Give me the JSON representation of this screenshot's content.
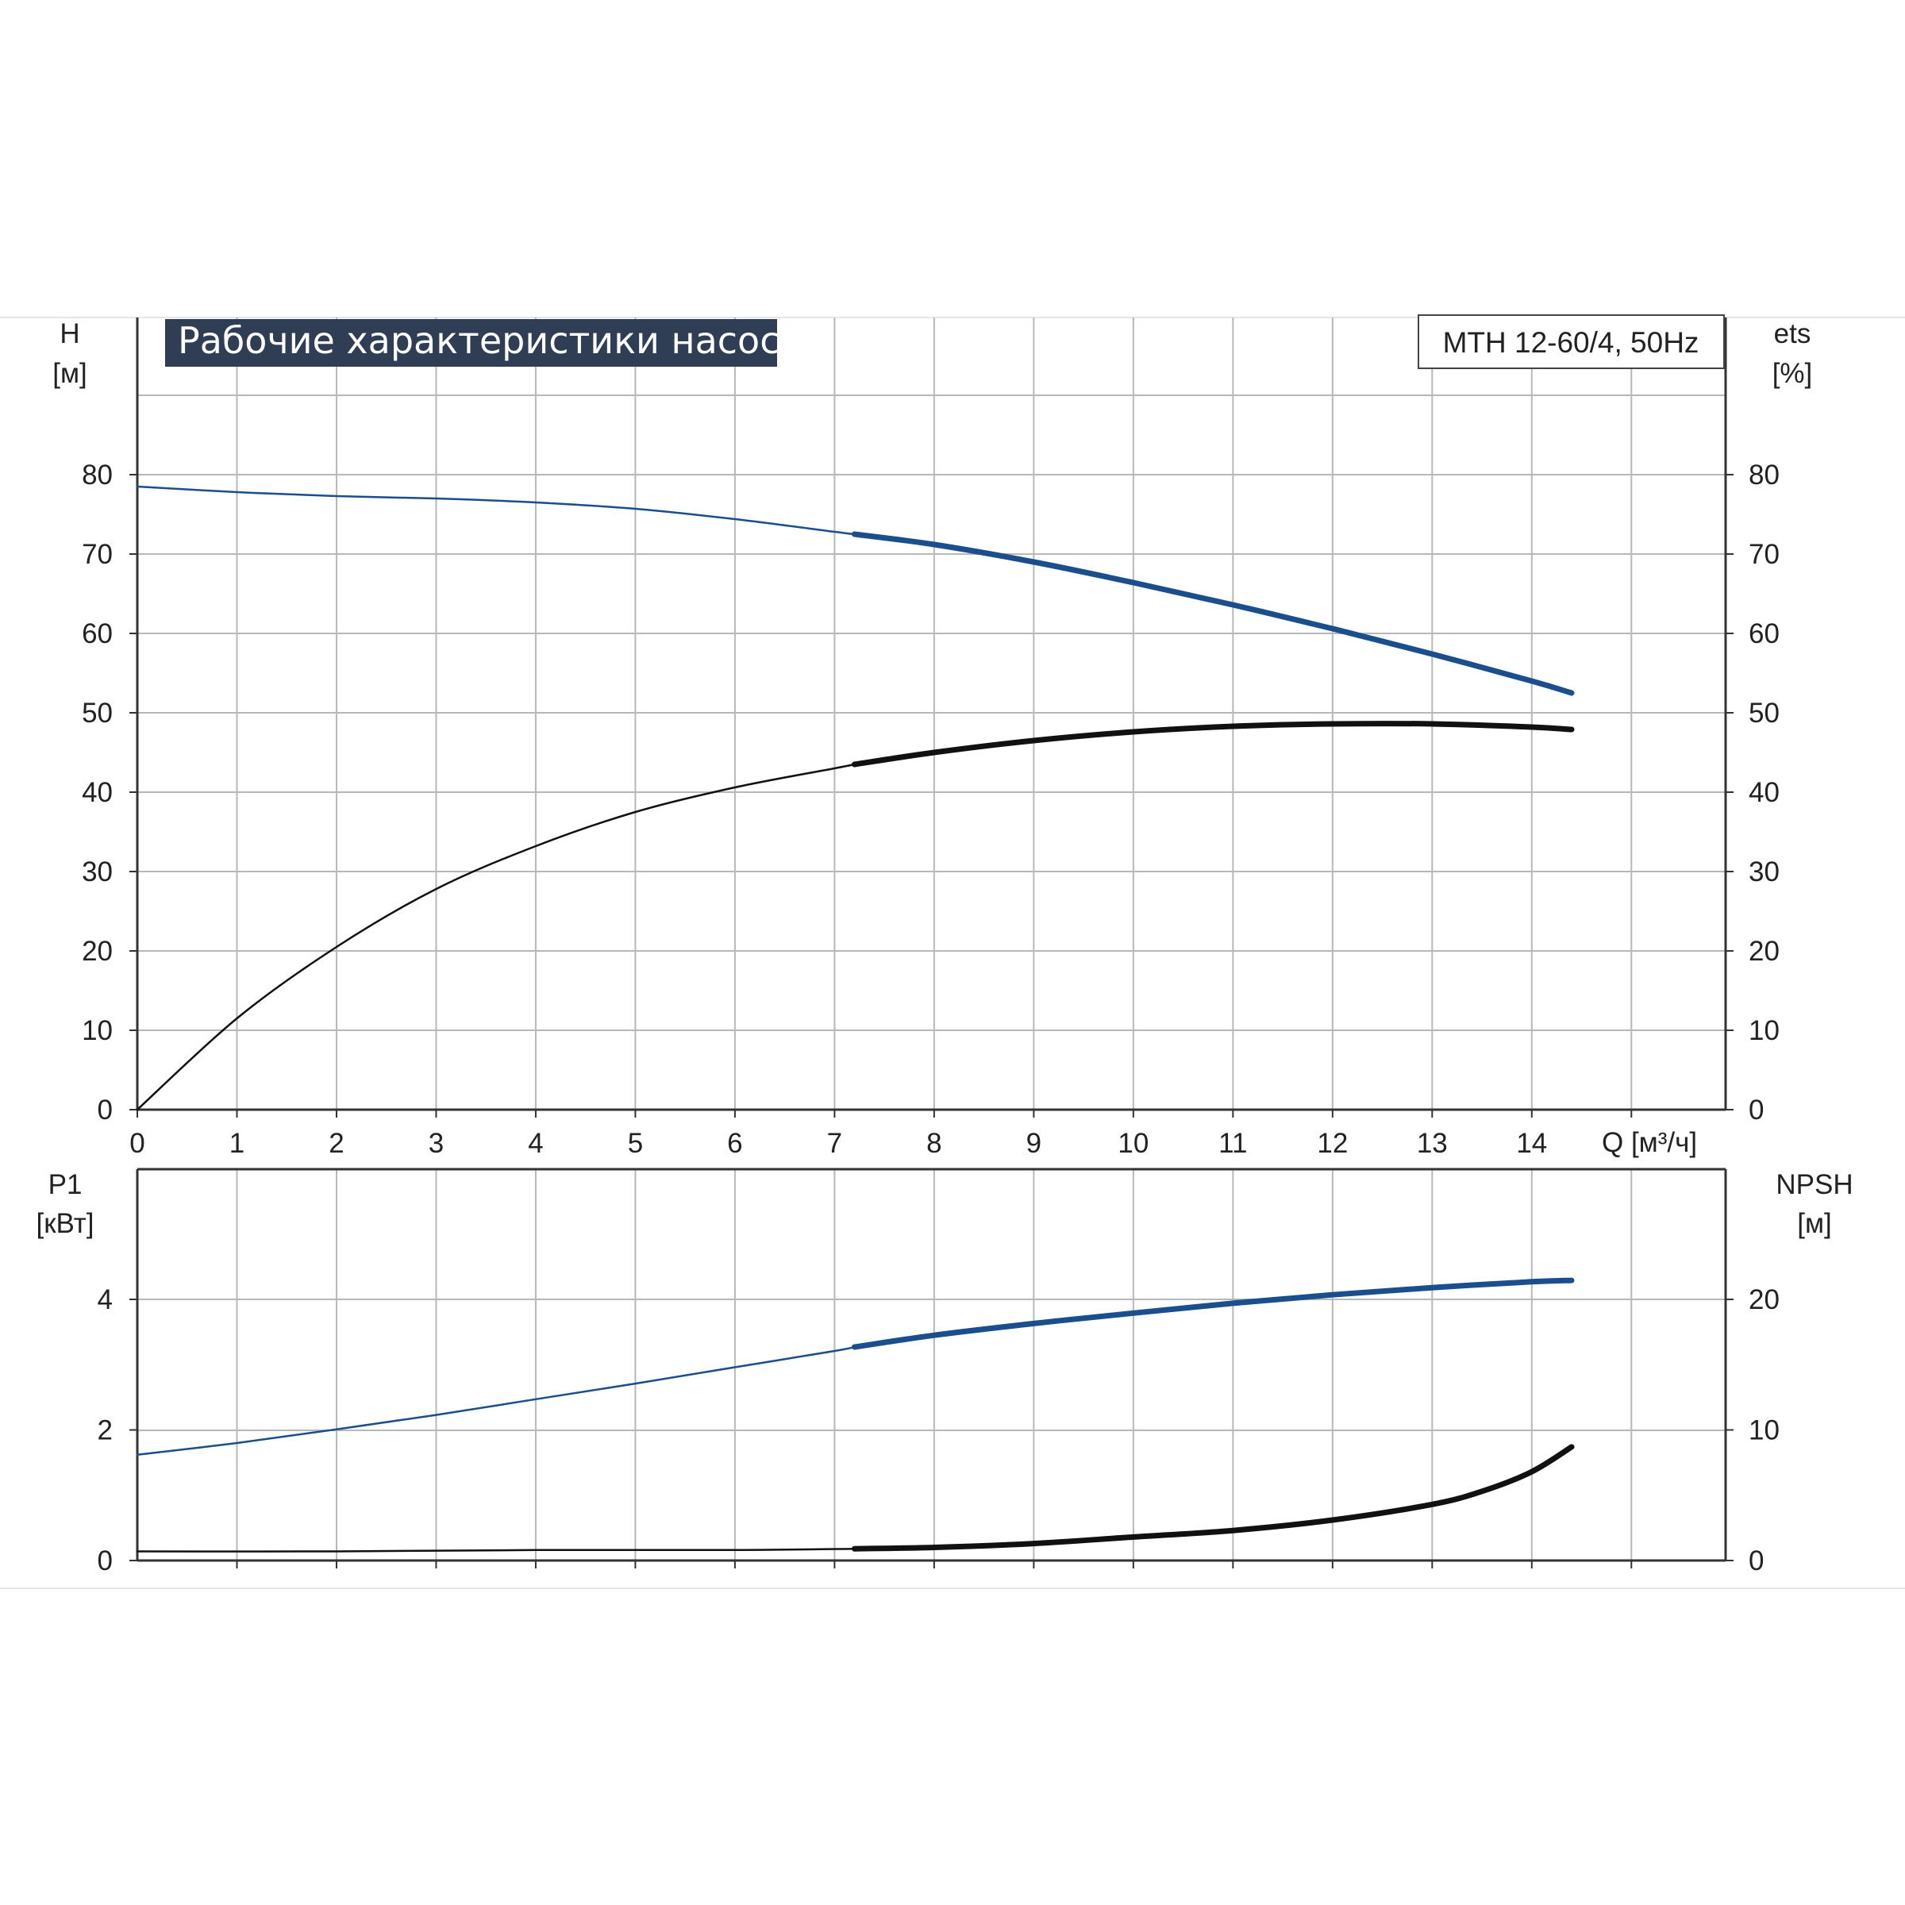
{
  "title": "Рабочие характеристики насоса",
  "model": "MTH 12-60/4, 50Hz",
  "colors": {
    "blue": "#1a4e8c",
    "black": "#111111",
    "grid": "#b8b8b8",
    "title_bg": "#2f3d55"
  },
  "chart_data": [
    {
      "type": "line",
      "name": "upper",
      "x_label": "Q [м³/ч]",
      "x_ticks": [
        "0",
        "1",
        "2",
        "3",
        "4",
        "5",
        "6",
        "7",
        "8",
        "9",
        "10",
        "11",
        "12",
        "13",
        "14"
      ],
      "xlim": [
        0,
        15.8
      ],
      "y_left_label": [
        "H",
        "[м]"
      ],
      "y_right_label": [
        "ets",
        "[%]"
      ],
      "y_ticks": [
        "0",
        "10",
        "20",
        "30",
        "40",
        "50",
        "60",
        "70",
        "80"
      ],
      "ylim": [
        0,
        90
      ],
      "grid": true,
      "series": [
        {
          "key": "H",
          "color": "blue",
          "thin_until": 7.2,
          "x": [
            0,
            1,
            2,
            3,
            4,
            5,
            6,
            7,
            7.2,
            8,
            9,
            10,
            11,
            12,
            13,
            14,
            14.4
          ],
          "y": [
            78.5,
            77.8,
            77.3,
            77.0,
            76.5,
            75.7,
            74.4,
            72.8,
            72.5,
            71.2,
            69.0,
            66.4,
            63.6,
            60.6,
            57.4,
            54.0,
            52.5
          ]
        },
        {
          "key": "eta",
          "color": "black",
          "thin_until": 7.2,
          "x": [
            0,
            1,
            2,
            3,
            4,
            5,
            6,
            7,
            7.2,
            8,
            9,
            10,
            11,
            12,
            13,
            14,
            14.4
          ],
          "y": [
            0,
            11.5,
            20.5,
            27.8,
            33.2,
            37.5,
            40.6,
            43.0,
            43.5,
            45.0,
            46.5,
            47.6,
            48.3,
            48.6,
            48.6,
            48.2,
            47.9
          ]
        }
      ]
    },
    {
      "type": "line",
      "name": "lower",
      "y_left_label": [
        "P1",
        "[кВт]"
      ],
      "y_right_label": [
        "NPSH",
        "[м]"
      ],
      "y_left_ticks": [
        "0",
        "2",
        "4"
      ],
      "y_right_ticks": [
        "0",
        "10",
        "20"
      ],
      "xlim": [
        0,
        15.8
      ],
      "ylim_left": [
        0,
        6
      ],
      "ylim_right": [
        0,
        30
      ],
      "grid": true,
      "series": [
        {
          "key": "P1",
          "color": "blue",
          "axis": "left",
          "thin_until": 7.2,
          "x": [
            0,
            1,
            2,
            3,
            4,
            5,
            6,
            7,
            7.2,
            8,
            9,
            10,
            11,
            12,
            13,
            14,
            14.4
          ],
          "y": [
            1.62,
            1.8,
            2.01,
            2.23,
            2.47,
            2.71,
            2.96,
            3.21,
            3.27,
            3.45,
            3.63,
            3.79,
            3.94,
            4.07,
            4.18,
            4.27,
            4.29
          ]
        },
        {
          "key": "NPSH",
          "color": "black",
          "axis": "right",
          "thin_until": 7.2,
          "x": [
            0,
            2,
            4,
            6,
            7.2,
            8,
            9,
            10,
            11,
            12,
            13,
            13.5,
            14,
            14.4
          ],
          "y": [
            0.7,
            0.7,
            0.8,
            0.8,
            0.9,
            1.0,
            1.3,
            1.8,
            2.3,
            3.1,
            4.3,
            5.3,
            6.8,
            8.7
          ]
        }
      ]
    }
  ]
}
